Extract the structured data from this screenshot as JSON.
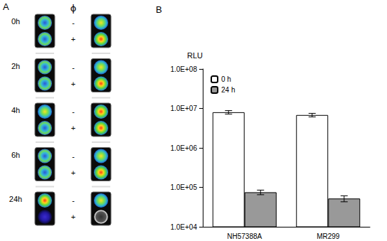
{
  "panel_a": {
    "label": "A",
    "header": "ϕ",
    "rows": [
      {
        "time": "0h",
        "treatments": [
          "-",
          "+"
        ]
      },
      {
        "time": "2h",
        "treatments": [
          "-",
          "+"
        ]
      },
      {
        "time": "4h",
        "treatments": [
          "-",
          "+"
        ]
      },
      {
        "time": "6h",
        "treatments": [
          "-",
          "+"
        ]
      },
      {
        "time": "24h",
        "treatments": [
          "-",
          "+"
        ]
      }
    ]
  },
  "chart_data": {
    "type": "bar",
    "title": "B",
    "y_label": "RLU",
    "categories": [
      "NH57388A",
      "MR299"
    ],
    "series": [
      {
        "name": "0 h",
        "color": "#ffffff",
        "values": [
          8000000,
          6800000
        ],
        "errors": [
          800000,
          700000
        ]
      },
      {
        "name": "24 h",
        "color": "#999999",
        "values": [
          75000,
          52000
        ],
        "errors": [
          10000,
          9000
        ]
      }
    ],
    "ylim": [
      10000,
      100000000
    ],
    "yticks": [
      {
        "value": 10000,
        "label": "1.0E+04"
      },
      {
        "value": 100000,
        "label": "1.0E+05"
      },
      {
        "value": 1000000,
        "label": "1.0E+06"
      },
      {
        "value": 10000000,
        "label": "1.0E+07"
      },
      {
        "value": 100000000,
        "label": "1.0E+08"
      }
    ],
    "log": "y",
    "grid": false,
    "legend": "upper left"
  }
}
